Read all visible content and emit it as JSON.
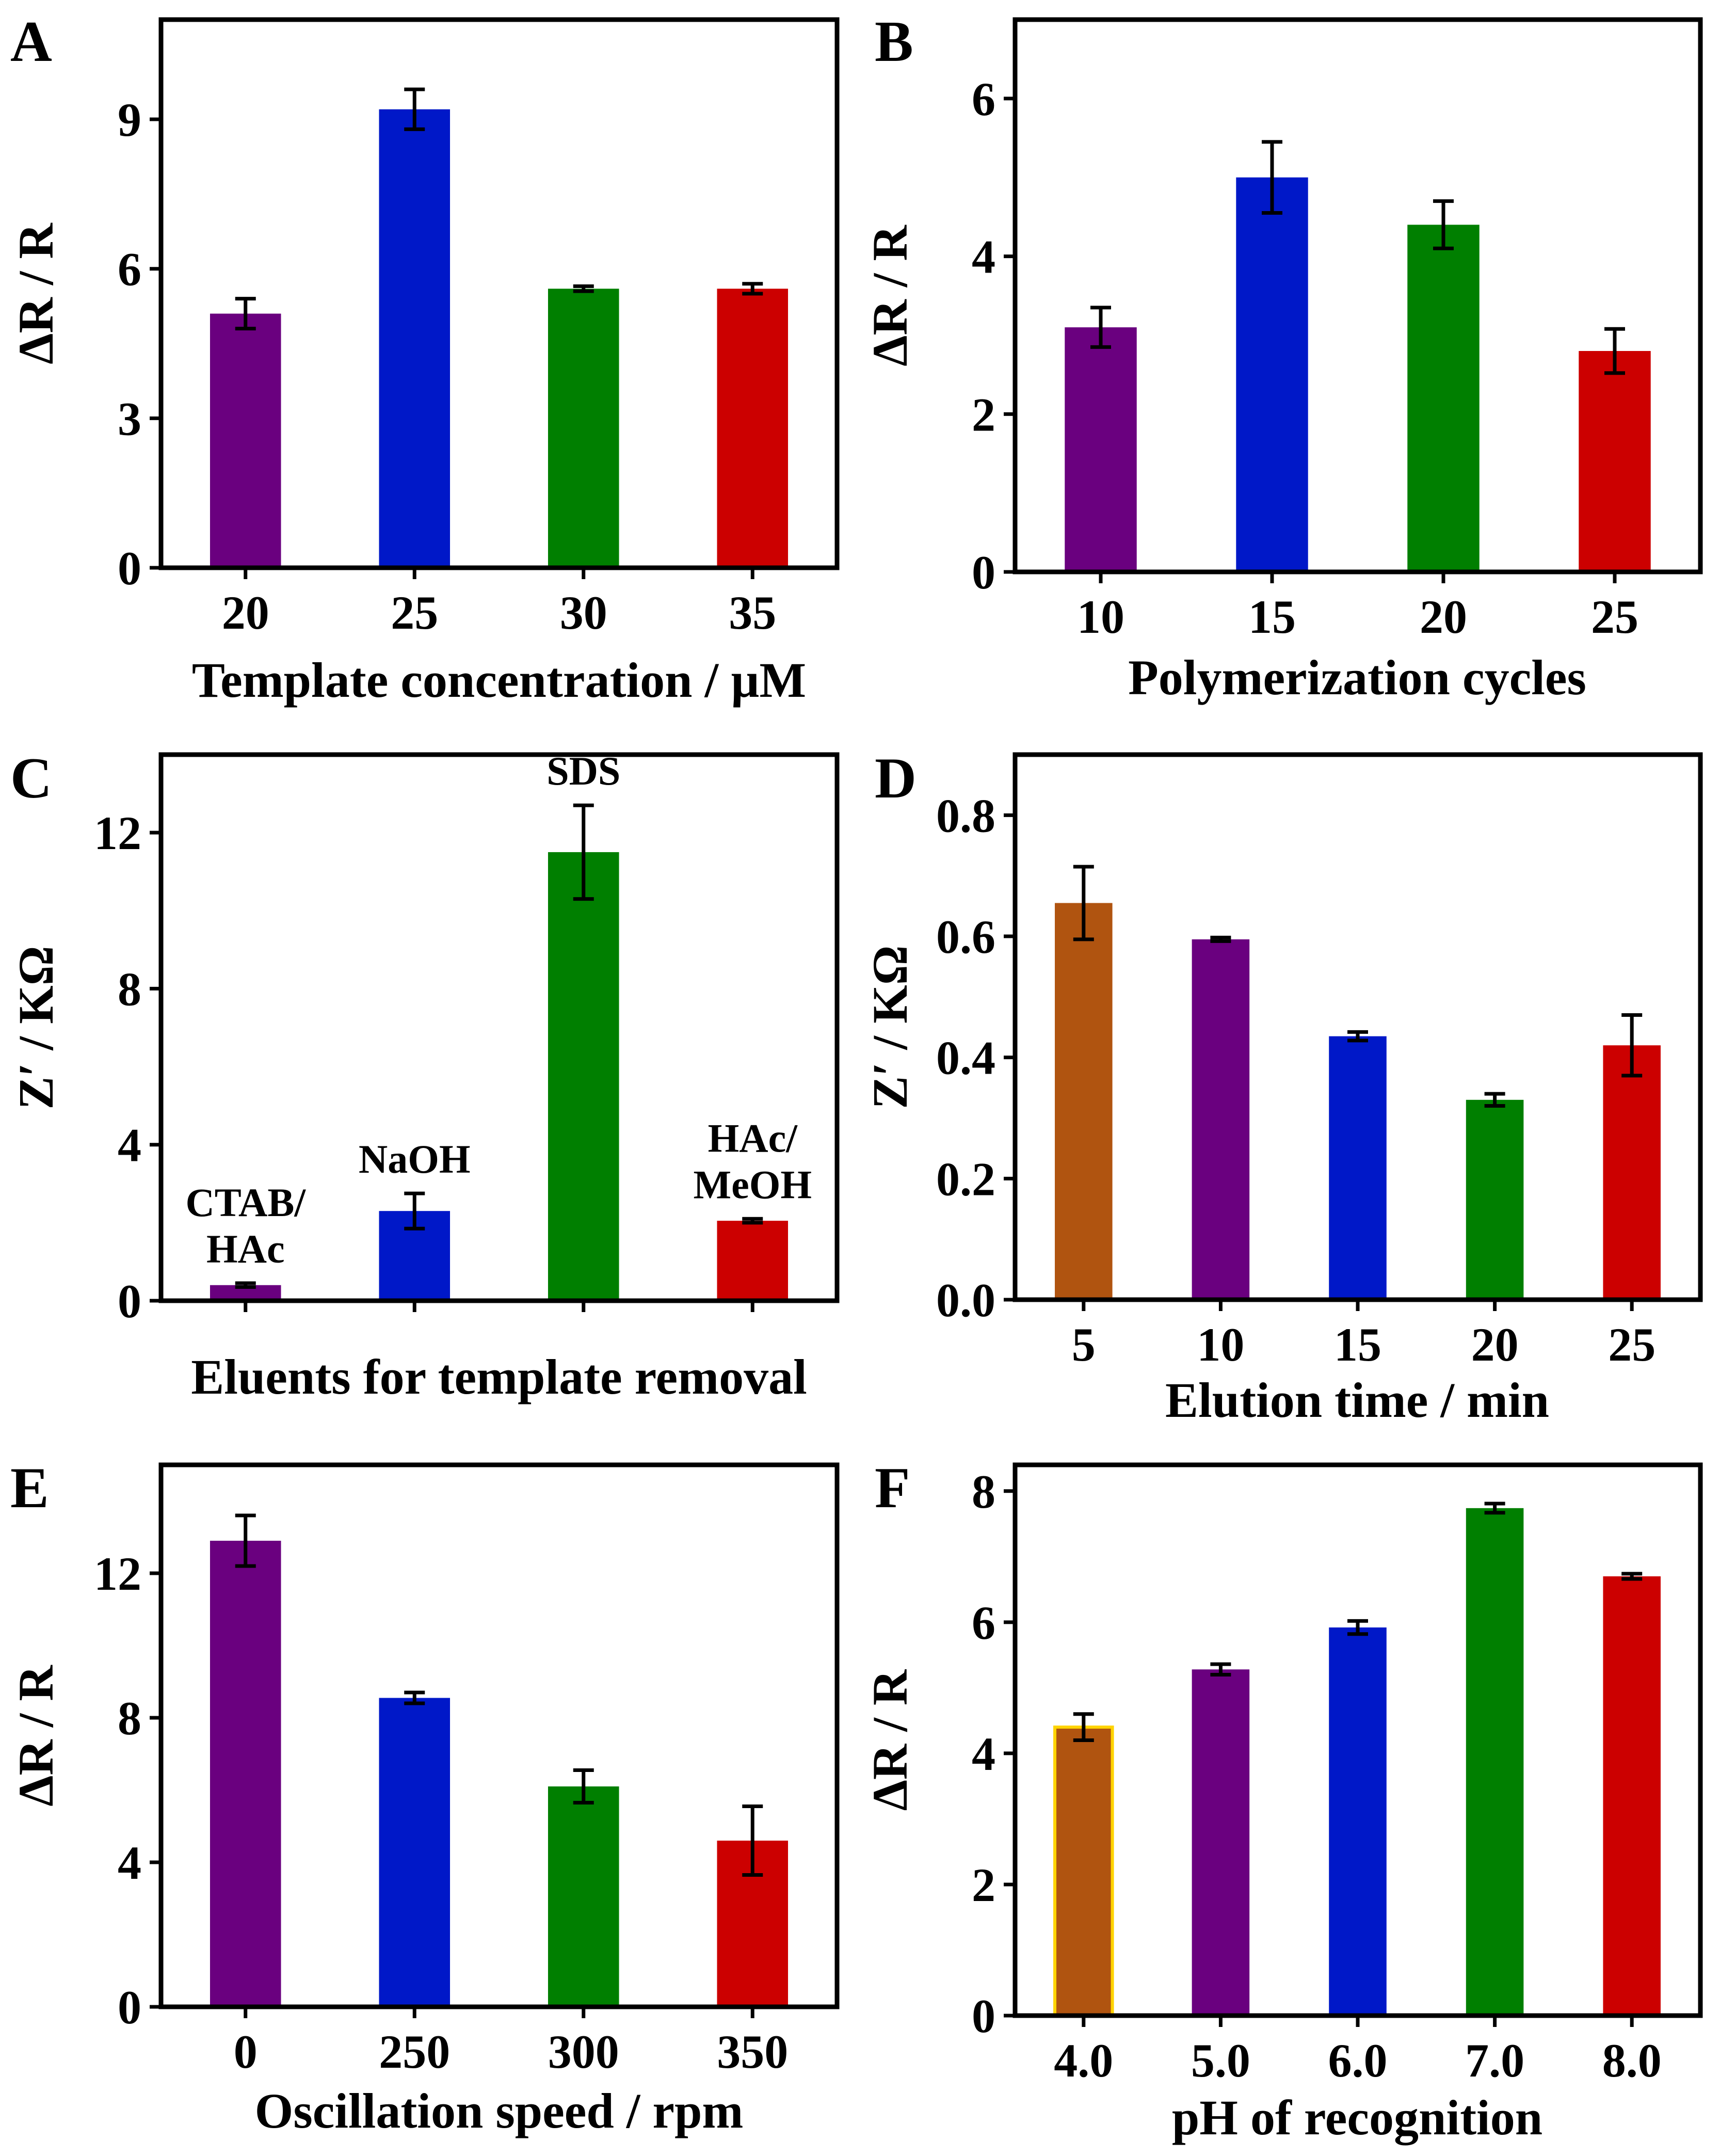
{
  "chart_data": [
    {
      "type": "bar",
      "panel": "A",
      "categories": [
        "20",
        "25",
        "30",
        "35"
      ],
      "values": [
        5.1,
        9.2,
        5.6,
        5.6
      ],
      "errors": [
        0.3,
        0.4,
        0.05,
        0.1
      ],
      "colors": [
        "#6a007f",
        "#0018c8",
        "#007f00",
        "#cc0000"
      ],
      "xlabel": "Template concentration / µM",
      "ylabel": "ΔR / R",
      "ylim": [
        0,
        11
      ],
      "yticks": [
        "0",
        "3",
        "6",
        "9"
      ],
      "yticks_values": [
        0,
        3,
        6,
        9
      ]
    },
    {
      "type": "bar",
      "panel": "B",
      "categories": [
        "10",
        "15",
        "20",
        "25"
      ],
      "values": [
        3.1,
        5.0,
        4.4,
        2.8
      ],
      "errors": [
        0.25,
        0.45,
        0.3,
        0.28
      ],
      "colors": [
        "#6a007f",
        "#0018c8",
        "#007f00",
        "#cc0000"
      ],
      "xlabel": "Polymerization cycles",
      "ylabel": "ΔR / R",
      "ylim": [
        0,
        7
      ],
      "yticks": [
        "0",
        "2",
        "4",
        "6"
      ],
      "yticks_values": [
        0,
        2,
        4,
        6
      ]
    },
    {
      "type": "bar",
      "panel": "C",
      "categories": [
        "CTAB/HAc",
        "NaOH",
        "SDS",
        "HAc/MeOH"
      ],
      "bar_labels": [
        [
          "CTAB/",
          "HAc"
        ],
        [
          "NaOH"
        ],
        [
          "SDS"
        ],
        [
          "HAc/",
          "MeOH"
        ]
      ],
      "values": [
        0.4,
        2.3,
        11.5,
        2.05
      ],
      "errors": [
        0.05,
        0.45,
        1.2,
        0.05
      ],
      "colors": [
        "#6a007f",
        "#0018c8",
        "#007f00",
        "#cc0000"
      ],
      "xlabel": "Eluents for template removal",
      "ylabel": "Z′ / KΩ",
      "ylim": [
        0,
        14
      ],
      "yticks": [
        "0",
        "4",
        "8",
        "12"
      ],
      "yticks_values": [
        0,
        4,
        8,
        12
      ]
    },
    {
      "type": "bar",
      "panel": "D",
      "categories": [
        "5",
        "10",
        "15",
        "20",
        "25"
      ],
      "values": [
        0.655,
        0.595,
        0.435,
        0.33,
        0.42
      ],
      "errors": [
        0.06,
        0.003,
        0.007,
        0.01,
        0.05
      ],
      "colors": [
        "#b05410",
        "#6a007f",
        "#0018c8",
        "#007f00",
        "#cc0000"
      ],
      "xlabel": "Elution time / min",
      "ylabel": "Z′ / KΩ",
      "ylim": [
        0,
        0.9
      ],
      "yticks": [
        "0.0",
        "0.2",
        "0.4",
        "0.6",
        "0.8"
      ],
      "yticks_values": [
        0,
        0.2,
        0.4,
        0.6,
        0.8
      ]
    },
    {
      "type": "bar",
      "panel": "E",
      "categories": [
        "0",
        "250",
        "300",
        "350"
      ],
      "values": [
        12.9,
        8.55,
        6.1,
        4.6
      ],
      "errors": [
        0.7,
        0.15,
        0.45,
        0.95
      ],
      "colors": [
        "#6a007f",
        "#0018c8",
        "#007f00",
        "#cc0000"
      ],
      "xlabel": "Oscillation speed / rpm",
      "ylabel": "ΔR / R",
      "ylim": [
        0,
        15
      ],
      "yticks": [
        "0",
        "4",
        "8",
        "12"
      ],
      "yticks_values": [
        0,
        4,
        8,
        12
      ]
    },
    {
      "type": "bar",
      "panel": "F",
      "categories": [
        "4.0",
        "5.0",
        "6.0",
        "7.0",
        "8.0"
      ],
      "values": [
        4.4,
        5.28,
        5.92,
        7.74,
        6.7
      ],
      "errors": [
        0.2,
        0.08,
        0.1,
        0.07,
        0.04
      ],
      "colors": [
        "#b05410",
        "#6a007f",
        "#0018c8",
        "#007f00",
        "#cc0000"
      ],
      "outline_first": "#ffd400",
      "xlabel": "pH of recognition",
      "ylabel": "ΔR / R",
      "ylim": [
        0,
        8.4
      ],
      "yticks": [
        "0",
        "2",
        "4",
        "6",
        "8"
      ],
      "yticks_values": [
        0,
        2,
        4,
        6,
        8
      ]
    }
  ]
}
